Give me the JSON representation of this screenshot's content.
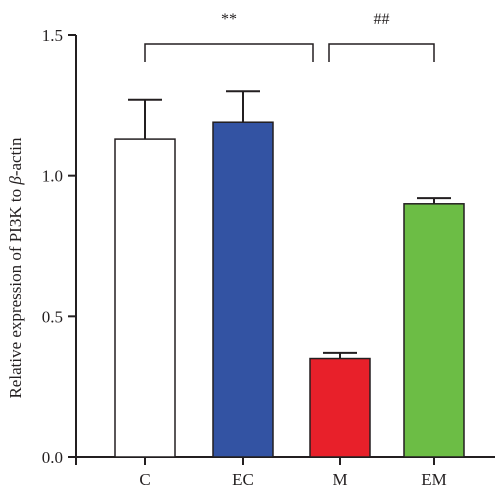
{
  "chart_data": {
    "type": "bar",
    "title": "",
    "xlabel": "",
    "ylabel": "Relative expression of PI3K to β-actin",
    "ylabel_parts": [
      "Relative expression of PI3K to ",
      "β",
      "-actin"
    ],
    "ylim": [
      0,
      1.5
    ],
    "yticks": [
      0.0,
      0.5,
      1.0,
      1.5
    ],
    "ytick_labels": [
      "0.0",
      "0.5",
      "1.0",
      "1.5"
    ],
    "categories": [
      "C",
      "EC",
      "M",
      "EM"
    ],
    "values": [
      1.13,
      1.19,
      0.35,
      0.9
    ],
    "errors": [
      0.14,
      0.11,
      0.02,
      0.02
    ],
    "colors": [
      "#ffffff",
      "#3353a3",
      "#e8202a",
      "#6cbd45"
    ],
    "edge_color": "#231f20",
    "grid": false,
    "significance": [
      {
        "from": "C",
        "to": "M",
        "label": "**"
      },
      {
        "from": "M",
        "to": "EM",
        "label": "##"
      }
    ]
  }
}
